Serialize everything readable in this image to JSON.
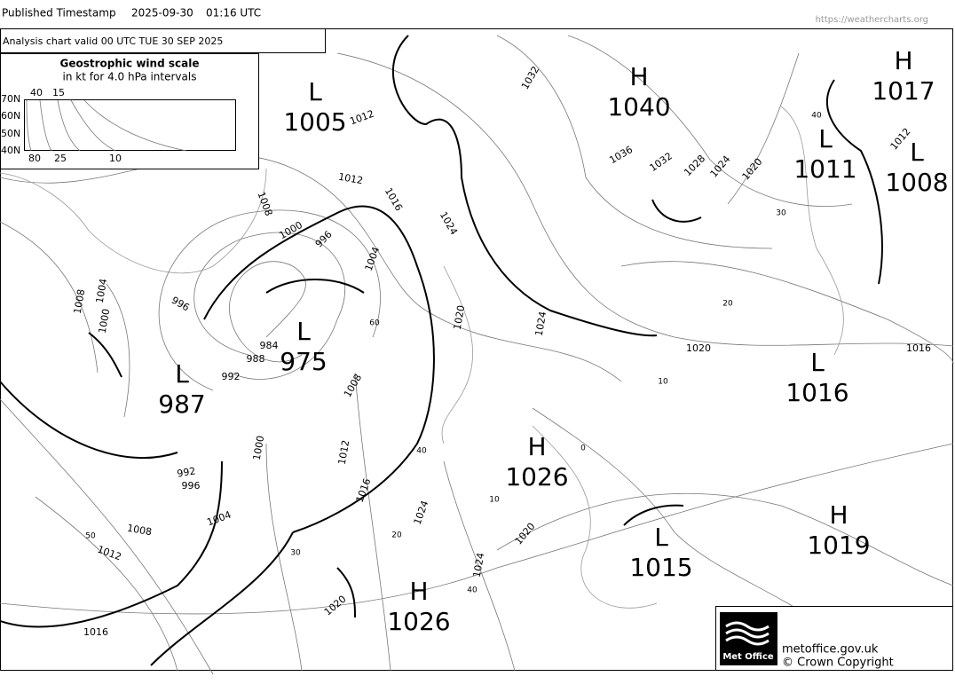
{
  "header": {
    "label": "Published Timestamp",
    "date": "2025-09-30",
    "time": "01:16  UTC",
    "url": "https://weathercharts.org"
  },
  "analysis": "Analysis chart  valid 00 UTC TUE 30  SEP 2025",
  "wind_scale": {
    "title": "Geostrophic wind scale",
    "subtitle": "in kt for 4.0 hPa intervals",
    "latitudes": [
      "70N",
      "60N",
      "50N",
      "40N"
    ],
    "top_ticks": [
      40,
      15
    ],
    "bottom_ticks": [
      80,
      25,
      10
    ]
  },
  "centers": [
    {
      "kind": "L",
      "pressure": 1005
    },
    {
      "kind": "H",
      "pressure": 1040
    },
    {
      "kind": "H",
      "pressure": 1017
    },
    {
      "kind": "L",
      "pressure": 1011
    },
    {
      "kind": "L",
      "pressure": 1008
    },
    {
      "kind": "L",
      "pressure": 975
    },
    {
      "kind": "L",
      "pressure": 987
    },
    {
      "kind": "H",
      "pressure": 1026
    },
    {
      "kind": "L",
      "pressure": 1016
    },
    {
      "kind": "L",
      "pressure": 1015
    },
    {
      "kind": "H",
      "pressure": 1019
    },
    {
      "kind": "H",
      "pressure": 1026
    }
  ],
  "isobar_labels": [
    1032,
    1012,
    1036,
    1032,
    1028,
    1024,
    1020,
    1012,
    1016,
    1008,
    1000,
    996,
    1004,
    1024,
    1008,
    1004,
    1000,
    996,
    1020,
    1024,
    984,
    988,
    992,
    1008,
    1020,
    1016,
    1000,
    1012,
    992,
    996,
    1016,
    1004,
    1024,
    1008,
    1012,
    1020,
    1024,
    1020,
    1016,
    1012
  ],
  "wind_labels": [
    40,
    30,
    20,
    10,
    60,
    40,
    20,
    10,
    0,
    50,
    30,
    40
  ],
  "footer": {
    "logo": "Met Office",
    "site": "metoffice.gov.uk",
    "copyright": "© Crown Copyright"
  }
}
